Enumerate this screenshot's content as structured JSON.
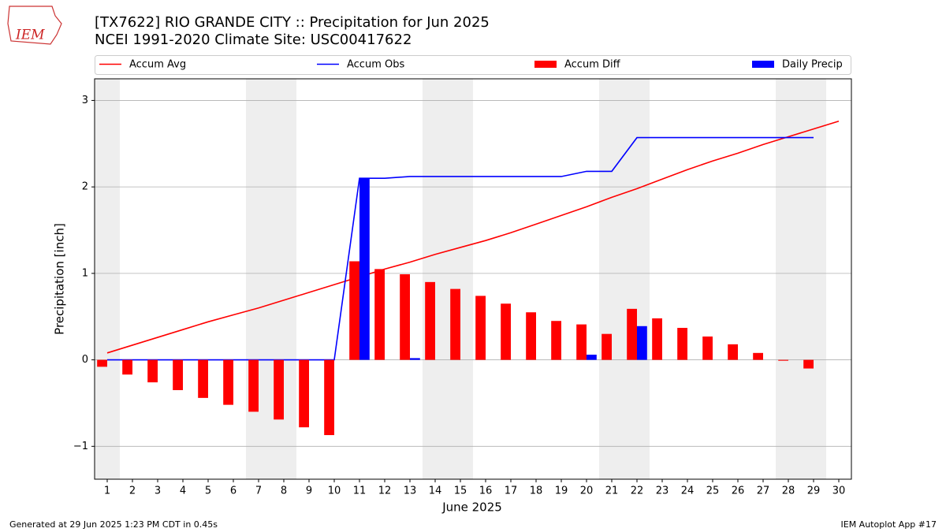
{
  "logo_text": "IEM",
  "chart_data": {
    "type": "bar",
    "title": "[TX7622] RIO GRANDE CITY :: Precipitation for Jun 2025",
    "subtitle": "NCEI 1991-2020 Climate Site: USC00417622",
    "x_label": "June 2025",
    "y_label": "Precipitation [inch]",
    "x": [
      1,
      2,
      3,
      4,
      5,
      6,
      7,
      8,
      9,
      10,
      11,
      12,
      13,
      14,
      15,
      16,
      17,
      18,
      19,
      20,
      21,
      22,
      23,
      24,
      25,
      26,
      27,
      28,
      29,
      30
    ],
    "xlim": [
      0.5,
      30.5
    ],
    "xticks": [
      1,
      2,
      3,
      4,
      5,
      6,
      7,
      8,
      9,
      10,
      11,
      12,
      13,
      14,
      15,
      16,
      17,
      18,
      19,
      20,
      21,
      22,
      23,
      24,
      25,
      26,
      27,
      28,
      29,
      30
    ],
    "ylim": [
      -1.38,
      3.25
    ],
    "yticks": [
      {
        "value": -1,
        "label": "−1"
      },
      0,
      1,
      2,
      3
    ],
    "grid": true,
    "weekend_shading": [
      1,
      7,
      8,
      14,
      15,
      21,
      22,
      28,
      29
    ],
    "series": [
      {
        "name": "Accum Avg",
        "type": "line",
        "color": "#ff0000",
        "values": [
          0.08,
          0.17,
          0.26,
          0.35,
          0.44,
          0.52,
          0.6,
          0.69,
          0.78,
          0.87,
          0.96,
          1.05,
          1.13,
          1.22,
          1.3,
          1.38,
          1.47,
          1.57,
          1.67,
          1.77,
          1.88,
          1.98,
          2.09,
          2.2,
          2.3,
          2.39,
          2.49,
          2.58,
          2.67,
          2.76
        ]
      },
      {
        "name": "Accum Obs",
        "type": "line",
        "color": "#0000ff",
        "values": [
          0,
          0,
          0,
          0,
          0,
          0,
          0,
          0,
          0,
          0,
          2.1,
          2.1,
          2.12,
          2.12,
          2.12,
          2.12,
          2.12,
          2.12,
          2.12,
          2.18,
          2.18,
          2.57,
          2.57,
          2.57,
          2.57,
          2.57,
          2.57,
          2.57,
          2.57,
          null
        ]
      },
      {
        "name": "Accum Diff",
        "type": "bar",
        "color": "#ff0000",
        "values": [
          -0.08,
          -0.17,
          -0.26,
          -0.35,
          -0.44,
          -0.52,
          -0.6,
          -0.69,
          -0.78,
          -0.87,
          1.14,
          1.05,
          0.99,
          0.9,
          0.82,
          0.74,
          0.65,
          0.55,
          0.45,
          0.41,
          0.3,
          0.59,
          0.48,
          0.37,
          0.27,
          0.18,
          0.08,
          -0.01,
          -0.1,
          null
        ]
      },
      {
        "name": "Daily Precip",
        "type": "bar",
        "color": "#0000ff",
        "values": [
          0,
          0,
          0,
          0,
          0,
          0,
          0,
          0,
          0,
          0,
          2.1,
          0,
          0.02,
          0,
          0,
          0,
          0,
          0,
          0,
          0.06,
          0,
          0.39,
          0,
          0,
          0,
          0,
          0,
          0,
          0,
          null
        ]
      }
    ],
    "footer_left": "Generated at 29 Jun 2025 1:23 PM CDT in 0.45s",
    "footer_right": "IEM Autoplot App #17"
  }
}
